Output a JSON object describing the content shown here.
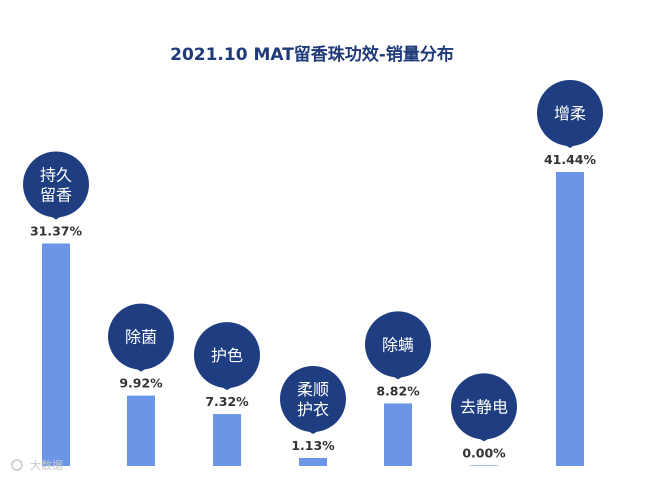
{
  "chart_data": {
    "type": "bar",
    "title": "2021.10 MAT留香珠功效-销量分布",
    "categories": [
      "持久留香",
      "除菌",
      "护色",
      "柔顺护衣",
      "除螨",
      "去静电",
      "增柔"
    ],
    "label_lines": [
      [
        "持久",
        "留香"
      ],
      [
        "除菌"
      ],
      [
        "护色"
      ],
      [
        "柔顺",
        "护衣"
      ],
      [
        "除螨"
      ],
      [
        "去静电"
      ],
      [
        "增柔"
      ]
    ],
    "values": [
      31.37,
      9.92,
      7.32,
      1.13,
      8.82,
      0.0,
      41.44
    ],
    "value_labels": [
      "31.37%",
      "9.92%",
      "7.32%",
      "1.13%",
      "8.82%",
      "0.00%",
      "41.44%"
    ],
    "unit": "%",
    "ylim": [
      0,
      41.44
    ],
    "grid": false,
    "legend": "none",
    "colors": {
      "bar": "#6b96e8",
      "pin": "#1f3e82",
      "title": "#1f3a78"
    }
  },
  "watermark": "大数据"
}
